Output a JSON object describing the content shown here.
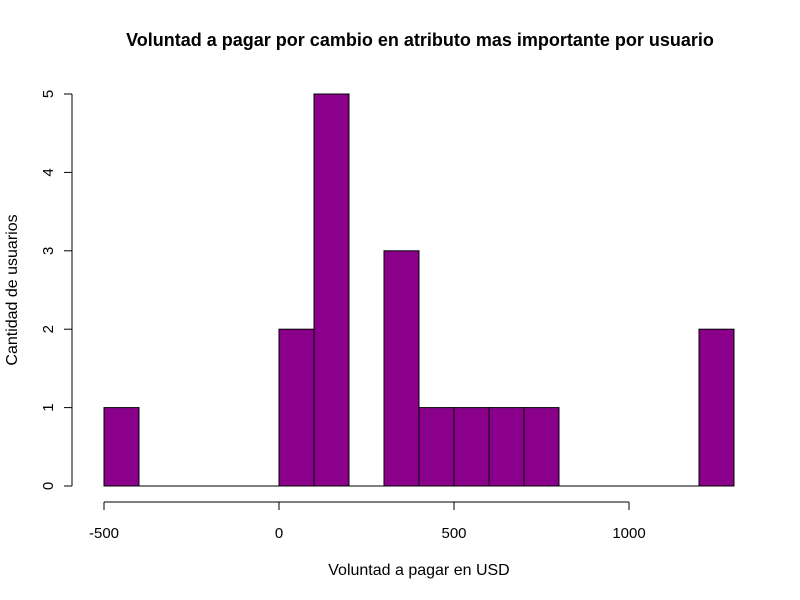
{
  "chart_data": {
    "type": "bar",
    "title": "Voluntad a pagar por cambio en atributo mas importante por usuario",
    "xlabel": "Voluntad a pagar en USD",
    "ylabel": "Cantidad de usuarios",
    "bar_color": "#8B008B",
    "bin_width": 100,
    "xlim": [
      -500,
      1300
    ],
    "ylim": [
      0,
      5
    ],
    "x_ticks": [
      -500,
      0,
      500,
      1000
    ],
    "y_ticks": [
      0,
      1,
      2,
      3,
      4,
      5
    ],
    "bins": [
      {
        "x0": -500,
        "x1": -400,
        "count": 1
      },
      {
        "x0": -400,
        "x1": -300,
        "count": 0
      },
      {
        "x0": -300,
        "x1": -200,
        "count": 0
      },
      {
        "x0": -200,
        "x1": -100,
        "count": 0
      },
      {
        "x0": -100,
        "x1": 0,
        "count": 0
      },
      {
        "x0": 0,
        "x1": 100,
        "count": 2
      },
      {
        "x0": 100,
        "x1": 200,
        "count": 5
      },
      {
        "x0": 200,
        "x1": 300,
        "count": 0
      },
      {
        "x0": 300,
        "x1": 400,
        "count": 3
      },
      {
        "x0": 400,
        "x1": 500,
        "count": 1
      },
      {
        "x0": 500,
        "x1": 600,
        "count": 1
      },
      {
        "x0": 600,
        "x1": 700,
        "count": 1
      },
      {
        "x0": 700,
        "x1": 800,
        "count": 1
      },
      {
        "x0": 800,
        "x1": 900,
        "count": 0
      },
      {
        "x0": 900,
        "x1": 1000,
        "count": 0
      },
      {
        "x0": 1000,
        "x1": 1100,
        "count": 0
      },
      {
        "x0": 1100,
        "x1": 1200,
        "count": 0
      },
      {
        "x0": 1200,
        "x1": 1300,
        "count": 2
      }
    ]
  }
}
